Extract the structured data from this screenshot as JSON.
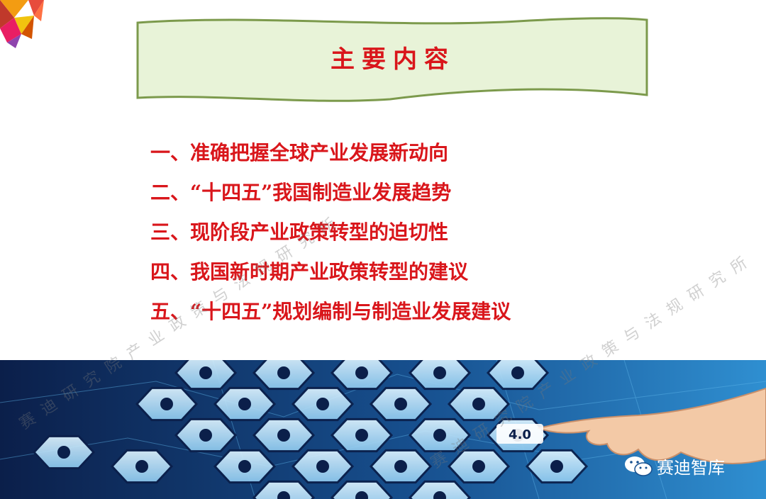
{
  "slide": {
    "title": "主要内容",
    "agenda": [
      "一、准确把握全球产业发展新动向",
      "二、“十四五”我国制造业发展趋势",
      "三、现阶段产业政策转型的迫切性",
      "四、我国新时期产业政策转型的建议",
      "五、“十四五”规划编制与制造业发展建议"
    ]
  },
  "watermark": {
    "text_a": "赛迪研究院产业政策与法规研究所",
    "text_b": "赛迪研究院产业政策与法规研究所"
  },
  "tech_band": {
    "industry_badge": "4.0"
  },
  "footer": {
    "wechat_label": "赛迪智库"
  },
  "colors": {
    "title_red": "#d9161b",
    "banner_fill": "#e8f3d8",
    "banner_stroke": "#7c9a4c",
    "band_dark": "#0b1f4a",
    "band_light": "#2f8fd1"
  }
}
